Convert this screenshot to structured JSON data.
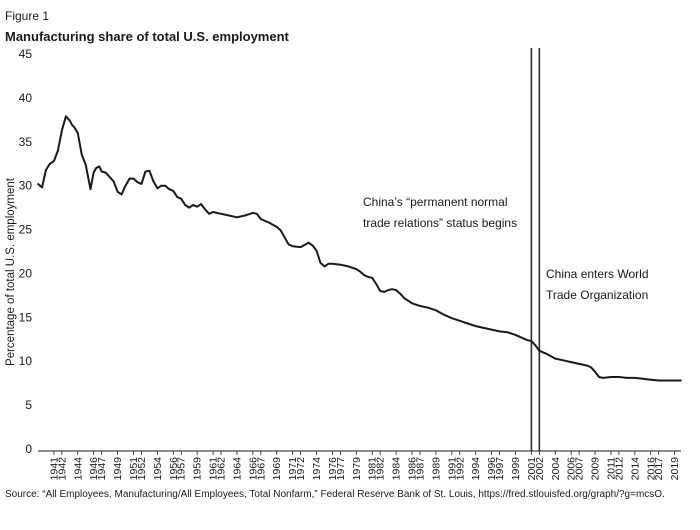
{
  "figure_label": "Figure 1",
  "title": "Manufacturing share of total U.S. employment",
  "source": "Source: “All Employees, Manufacturing/All Employees, Total Nonfarm,” Federal Reserve Bank of St. Louis, https://fred.stlouisfed.org/graph/?g=mcsO.",
  "colors": {
    "line": "#1a1a1a",
    "event_line": "#2a2a40",
    "axis": "#1a1a1a"
  },
  "chart_data": {
    "type": "line",
    "title": "Manufacturing share of total U.S. employment",
    "xlabel": "",
    "ylabel": "Percentage of total U.S. employment",
    "xlim": [
      1939,
      2019.8
    ],
    "ylim": [
      0,
      45
    ],
    "yticks": [
      0,
      5,
      10,
      15,
      20,
      25,
      30,
      35,
      40,
      45
    ],
    "xticks": [
      1941,
      1942,
      1944,
      1946,
      1947,
      1949,
      1951,
      1952,
      1954,
      1956,
      1957,
      1959,
      1961,
      1962,
      1964,
      1966,
      1967,
      1969,
      1971,
      1972,
      1974,
      1976,
      1977,
      1979,
      1981,
      1982,
      1984,
      1986,
      1987,
      1989,
      1991,
      1992,
      1994,
      1996,
      1997,
      1999,
      2001,
      2002,
      2004,
      2006,
      2007,
      2009,
      2011,
      2012,
      2014,
      2016,
      2017,
      2019
    ],
    "grid": false,
    "series": [
      {
        "name": "Manufacturing share",
        "x": [
          1939.0,
          1939.5,
          1940.0,
          1940.5,
          1941.0,
          1941.5,
          1942.0,
          1942.5,
          1943.0,
          1943.3,
          1943.6,
          1944.0,
          1944.5,
          1945.0,
          1945.3,
          1945.6,
          1945.8,
          1946.0,
          1946.3,
          1946.7,
          1947.0,
          1947.5,
          1948.0,
          1948.5,
          1949.0,
          1949.5,
          1950.0,
          1950.5,
          1951.0,
          1951.5,
          1952.0,
          1952.5,
          1953.0,
          1953.5,
          1954.0,
          1954.5,
          1955.0,
          1955.5,
          1956.0,
          1956.5,
          1957.0,
          1957.5,
          1958.0,
          1958.5,
          1959.0,
          1959.5,
          1960.0,
          1960.5,
          1961.0,
          1962.0,
          1963.0,
          1964.0,
          1965.0,
          1966.0,
          1966.5,
          1967.0,
          1967.5,
          1968.0,
          1969.0,
          1969.5,
          1970.0,
          1970.5,
          1971.0,
          1972.0,
          1973.0,
          1973.5,
          1974.0,
          1974.5,
          1975.0,
          1975.5,
          1976.0,
          1977.0,
          1978.0,
          1979.0,
          1979.5,
          1980.0,
          1980.5,
          1981.0,
          1981.5,
          1982.0,
          1982.5,
          1983.0,
          1983.5,
          1984.0,
          1984.5,
          1985.0,
          1986.0,
          1987.0,
          1988.0,
          1989.0,
          1990.0,
          1991.0,
          1992.0,
          1993.0,
          1994.0,
          1995.0,
          1996.0,
          1997.0,
          1998.0,
          1999.0,
          2000.0,
          2000.5,
          2001.0,
          2001.5,
          2002.0,
          2003.0,
          2004.0,
          2005.0,
          2006.0,
          2007.0,
          2008.0,
          2008.5,
          2009.0,
          2009.5,
          2010.0,
          2011.0,
          2012.0,
          2013.0,
          2014.0,
          2015.0,
          2016.0,
          2017.0,
          2018.0,
          2019.0,
          2019.8
        ],
        "values": [
          30.2,
          29.8,
          31.8,
          32.5,
          32.8,
          34.0,
          36.3,
          37.9,
          37.4,
          36.9,
          36.6,
          36.0,
          33.5,
          32.4,
          31.0,
          29.6,
          30.6,
          31.5,
          32.0,
          32.2,
          31.6,
          31.5,
          31.0,
          30.5,
          29.3,
          29.0,
          30.0,
          30.8,
          30.8,
          30.4,
          30.2,
          31.6,
          31.7,
          30.5,
          29.7,
          30.0,
          30.0,
          29.6,
          29.4,
          28.7,
          28.5,
          27.8,
          27.5,
          27.8,
          27.6,
          27.9,
          27.3,
          26.8,
          27.0,
          26.8,
          26.6,
          26.4,
          26.6,
          26.9,
          26.8,
          26.2,
          26.0,
          25.8,
          25.3,
          24.9,
          24.1,
          23.3,
          23.1,
          23.0,
          23.5,
          23.2,
          22.6,
          21.2,
          20.8,
          21.1,
          21.1,
          21.0,
          20.8,
          20.5,
          20.2,
          19.8,
          19.6,
          19.5,
          18.8,
          18.0,
          17.9,
          18.1,
          18.2,
          18.1,
          17.7,
          17.2,
          16.6,
          16.3,
          16.1,
          15.8,
          15.3,
          14.9,
          14.6,
          14.3,
          14.0,
          13.8,
          13.6,
          13.4,
          13.3,
          13.0,
          12.6,
          12.4,
          12.3,
          11.8,
          11.2,
          10.8,
          10.3,
          10.1,
          9.9,
          9.7,
          9.5,
          9.3,
          8.8,
          8.2,
          8.1,
          8.2,
          8.2,
          8.1,
          8.1,
          8.0,
          7.9,
          7.8,
          7.8,
          7.8,
          7.8
        ]
      }
    ],
    "events": [
      {
        "year": 2001.0,
        "label": [
          "China’s “permanent normal",
          "trade relations” status begins"
        ]
      },
      {
        "year": 2002.0,
        "label": [
          "China enters World",
          "Trade Organization"
        ]
      }
    ]
  }
}
